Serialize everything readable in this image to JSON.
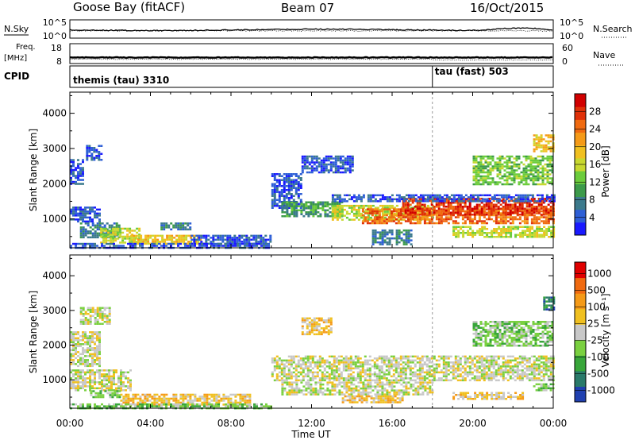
{
  "header": {
    "station": "Goose Bay (fitACF)",
    "beam": "Beam 07",
    "date": "16/Oct/2015"
  },
  "status_panels": {
    "nsky_label": "N.Sky",
    "nsky_ticks": [
      "10^5",
      "10^0"
    ],
    "nsearch_label": "N.Search",
    "nsearch_ticks": [
      "10^5",
      "10^0"
    ],
    "freq_label_line1": "Freq.",
    "freq_label_line2": "[MHz]",
    "freq_ticks": [
      "18",
      "8"
    ],
    "nave_label": "Nave",
    "nave_ticks": [
      "60",
      "0"
    ],
    "cpid_label": "CPID",
    "cpid_segments": [
      {
        "name": "themis (tau) 3310",
        "start_hour": 0
      },
      {
        "name": "tau (fast) 503",
        "start_hour": 18
      }
    ]
  },
  "x_axis": {
    "label": "Time UT",
    "ticks": [
      "00:00",
      "04:00",
      "08:00",
      "12:00",
      "16:00",
      "20:00",
      "00:00"
    ]
  },
  "chart_data": [
    {
      "type": "heatmap",
      "parameter": "Power",
      "ylabel": "Slant Range [km]",
      "xlabel": "",
      "yticks": [
        "1000",
        "2000",
        "3000",
        "4000"
      ],
      "ylim": [
        180,
        4600
      ],
      "xlim": [
        0,
        24
      ],
      "colorbar": {
        "label": "Power [dB]",
        "ticks": [
          "4",
          "8",
          "12",
          "16",
          "20",
          "24",
          "28"
        ],
        "colors": [
          "#1a1aff",
          "#2e5fd6",
          "#3c7a8c",
          "#3c9a4a",
          "#6ccc3c",
          "#c8d830",
          "#f0c020",
          "#f59a18",
          "#f06a10",
          "#e03008",
          "#d10000"
        ]
      },
      "regions": [
        {
          "t0": 0.0,
          "t1": 0.6,
          "r0": 2000,
          "r1": 2700,
          "level": 1
        },
        {
          "t0": 0.8,
          "t1": 1.6,
          "r0": 2700,
          "r1": 3100,
          "level": 1
        },
        {
          "t0": 0.0,
          "t1": 1.5,
          "r0": 900,
          "r1": 1350,
          "level": 1
        },
        {
          "t0": 0.5,
          "t1": 2.5,
          "r0": 500,
          "r1": 900,
          "level": 2
        },
        {
          "t0": 1.5,
          "t1": 3.5,
          "r0": 350,
          "r1": 750,
          "level": 5
        },
        {
          "t0": 3.0,
          "t1": 6.5,
          "r0": 300,
          "r1": 550,
          "level": 6
        },
        {
          "t0": 4.5,
          "t1": 6.0,
          "r0": 700,
          "r1": 900,
          "level": 2
        },
        {
          "t0": 6.0,
          "t1": 10.0,
          "r0": 300,
          "r1": 550,
          "level": 1
        },
        {
          "t0": 0.0,
          "t1": 10.0,
          "r0": 200,
          "r1": 320,
          "level": 1
        },
        {
          "t0": 10.0,
          "t1": 11.5,
          "r0": 1300,
          "r1": 2300,
          "level": 1
        },
        {
          "t0": 10.5,
          "t1": 13.5,
          "r0": 1100,
          "r1": 1500,
          "level": 3
        },
        {
          "t0": 11.5,
          "t1": 14.0,
          "r0": 2300,
          "r1": 2800,
          "level": 1
        },
        {
          "t0": 13.0,
          "t1": 18.0,
          "r0": 950,
          "r1": 1400,
          "level": 5
        },
        {
          "t0": 14.5,
          "t1": 24.0,
          "r0": 850,
          "r1": 1300,
          "level": 8
        },
        {
          "t0": 16.5,
          "t1": 24.0,
          "r0": 1100,
          "r1": 1600,
          "level": 9
        },
        {
          "t0": 13.0,
          "t1": 24.0,
          "r0": 1500,
          "r1": 1700,
          "level": 1
        },
        {
          "t0": 15.0,
          "t1": 17.0,
          "r0": 300,
          "r1": 700,
          "level": 2
        },
        {
          "t0": 19.0,
          "t1": 24.0,
          "r0": 500,
          "r1": 800,
          "level": 5
        },
        {
          "t0": 20.0,
          "t1": 24.0,
          "r0": 2000,
          "r1": 2800,
          "level": 4
        },
        {
          "t0": 23.0,
          "t1": 24.0,
          "r0": 2900,
          "r1": 3400,
          "level": 6
        }
      ]
    },
    {
      "type": "heatmap",
      "parameter": "Velocity",
      "ylabel": "Slant Range [km]",
      "xlabel": "Time UT",
      "yticks": [
        "1000",
        "2000",
        "3000",
        "4000"
      ],
      "ylim": [
        180,
        4600
      ],
      "xlim": [
        0,
        24
      ],
      "colorbar": {
        "label": "Velocity [m s⁻¹]",
        "ticks": [
          "1000",
          "500",
          "100",
          "25",
          "-25",
          "-100",
          "-500",
          "-1000"
        ],
        "colors": [
          "#2040b0",
          "#2a7a6a",
          "#38a63a",
          "#7ad040",
          "#c8c8c8",
          "#f0c020",
          "#f59a18",
          "#f06a10",
          "#e00000"
        ]
      },
      "regions": [
        {
          "t0": 0.0,
          "t1": 1.5,
          "r0": 1400,
          "r1": 2400,
          "level": 4
        },
        {
          "t0": 0.5,
          "t1": 2.0,
          "r0": 2600,
          "r1": 3100,
          "level": 4
        },
        {
          "t0": 0.0,
          "t1": 3.0,
          "r0": 700,
          "r1": 1300,
          "level": 4
        },
        {
          "t0": 1.0,
          "t1": 2.5,
          "r0": 500,
          "r1": 700,
          "level": 3
        },
        {
          "t0": 2.5,
          "t1": 9.0,
          "r0": 300,
          "r1": 600,
          "level": 5
        },
        {
          "t0": 0.0,
          "t1": 10.0,
          "r0": 200,
          "r1": 320,
          "level": 3
        },
        {
          "t0": 10.0,
          "t1": 24.0,
          "r0": 1000,
          "r1": 1700,
          "level": 4
        },
        {
          "t0": 11.5,
          "t1": 13.0,
          "r0": 2300,
          "r1": 2800,
          "level": 5
        },
        {
          "t0": 10.5,
          "t1": 18.0,
          "r0": 600,
          "r1": 950,
          "level": 4
        },
        {
          "t0": 13.5,
          "t1": 16.5,
          "r0": 350,
          "r1": 550,
          "level": 5
        },
        {
          "t0": 19.0,
          "t1": 22.5,
          "r0": 450,
          "r1": 650,
          "level": 5
        },
        {
          "t0": 20.0,
          "t1": 24.0,
          "r0": 2000,
          "r1": 2700,
          "level": 3
        },
        {
          "t0": 23.0,
          "t1": 24.0,
          "r0": 700,
          "r1": 900,
          "level": 3
        },
        {
          "t0": 23.5,
          "t1": 24.0,
          "r0": 3000,
          "r1": 3400,
          "level": 1
        }
      ]
    }
  ]
}
